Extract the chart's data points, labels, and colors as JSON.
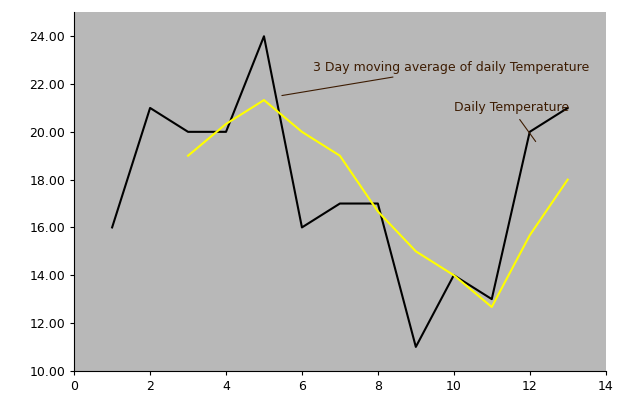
{
  "daily_x": [
    1,
    2,
    3,
    4,
    5,
    6,
    7,
    8,
    9,
    10,
    11,
    12,
    13
  ],
  "daily_y": [
    16,
    21,
    20,
    20,
    24,
    16,
    17,
    17,
    11,
    14,
    13,
    20,
    21
  ],
  "sma_x": [
    3,
    4,
    5,
    6,
    7,
    8,
    9,
    10,
    11,
    12,
    13
  ],
  "sma_y": [
    19.0,
    20.33,
    21.33,
    20.0,
    19.0,
    16.67,
    15.0,
    14.0,
    12.67,
    15.67,
    18.0
  ],
  "daily_color": "#000000",
  "sma_color": "#ffff00",
  "plot_bg_color": "#b8b8b8",
  "fig_bg_color": "#ffffff",
  "linewidth": 1.5,
  "xlim": [
    0,
    14
  ],
  "ylim": [
    10.0,
    25.0
  ],
  "yticks": [
    10.0,
    12.0,
    14.0,
    16.0,
    18.0,
    20.0,
    22.0,
    24.0
  ],
  "xticks": [
    0,
    2,
    4,
    6,
    8,
    10,
    12,
    14
  ],
  "annotation_sma_text": "3 Day moving average of daily Temperature",
  "annotation_daily_text": "Daily Temperature",
  "font_size": 9
}
